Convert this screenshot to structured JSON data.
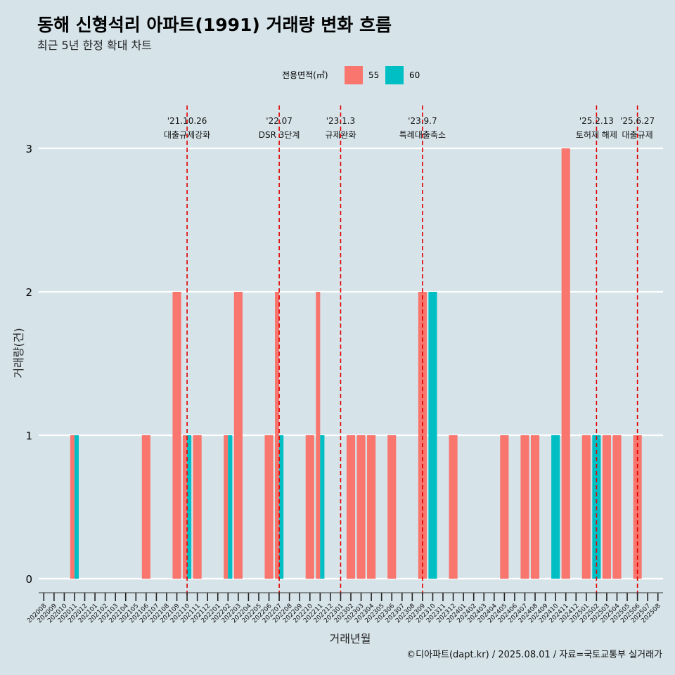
{
  "title": "동해 신형석리 아파트(1991) 거래량 변화 흐름",
  "subtitle": "최근 5년 한정 확대 차트",
  "caption": "©디아파트(dapt.kr) / 2025.08.01 / 자료=국토교통부 실거래가",
  "colors": {
    "s55": "#f8766d",
    "s60": "#00bfc4",
    "grid": "#ffffff",
    "vline": "#e00000",
    "background": "#d6e4ea"
  },
  "chart_data": {
    "type": "bar",
    "xlabel": "거래년월",
    "ylabel": "거래량(건)",
    "ylim": [
      0,
      3
    ],
    "yticks": [
      0,
      1,
      2,
      3
    ],
    "legend": {
      "title": "전용면적(㎡)",
      "position": "top"
    },
    "categories": [
      "202008",
      "202009",
      "202010",
      "202011",
      "202012",
      "202101",
      "202102",
      "202103",
      "202104",
      "202105",
      "202106",
      "202107",
      "202108",
      "202109",
      "202110",
      "202111",
      "202112",
      "202201",
      "202202",
      "202203",
      "202204",
      "202205",
      "202206",
      "202207",
      "202208",
      "202209",
      "202210",
      "202211",
      "202212",
      "202301",
      "202302",
      "202303",
      "202304",
      "202305",
      "202306",
      "202307",
      "202308",
      "202309",
      "202310",
      "202311",
      "202312",
      "202401",
      "202402",
      "202403",
      "202404",
      "202405",
      "202406",
      "202407",
      "202408",
      "202409",
      "202410",
      "202411",
      "202412",
      "202501",
      "202502",
      "202503",
      "202504",
      "202505",
      "202506",
      "202507",
      "202508"
    ],
    "series": [
      {
        "name": "55",
        "values": [
          0,
          0,
          0,
          1,
          0,
          0,
          0,
          0,
          0,
          0,
          1,
          0,
          0,
          2,
          1,
          1,
          0,
          0,
          1,
          2,
          0,
          0,
          1,
          2,
          0,
          0,
          1,
          2,
          0,
          0,
          1,
          1,
          1,
          0,
          1,
          0,
          0,
          2,
          0,
          0,
          1,
          0,
          0,
          0,
          0,
          1,
          0,
          1,
          1,
          0,
          0,
          3,
          0,
          1,
          0,
          1,
          1,
          0,
          1,
          0,
          0
        ]
      },
      {
        "name": "60",
        "values": [
          0,
          0,
          0,
          1,
          0,
          0,
          0,
          0,
          0,
          0,
          0,
          0,
          0,
          0,
          1,
          0,
          0,
          0,
          1,
          0,
          0,
          0,
          0,
          1,
          0,
          0,
          0,
          1,
          0,
          0,
          0,
          0,
          0,
          0,
          0,
          0,
          0,
          0,
          2,
          0,
          0,
          0,
          0,
          0,
          0,
          0,
          0,
          0,
          0,
          0,
          1,
          0,
          0,
          0,
          1,
          0,
          0,
          0,
          0,
          0,
          0
        ]
      }
    ],
    "annotations": [
      {
        "date": "'21.10.26",
        "label": "대출규제강화",
        "at": "202110"
      },
      {
        "date": "'22.07",
        "label": "DSR 3단계",
        "at": "202207"
      },
      {
        "date": "'23.1.3",
        "label": "규제완화",
        "at": "202301"
      },
      {
        "date": "'23.9.7",
        "label": "특례대출축소",
        "at": "202309"
      },
      {
        "date": "'25.2.13",
        "label": "토허제 해제",
        "at": "202502"
      },
      {
        "date": "'25.6.27",
        "label": "대출규제",
        "at": "202506"
      }
    ]
  }
}
